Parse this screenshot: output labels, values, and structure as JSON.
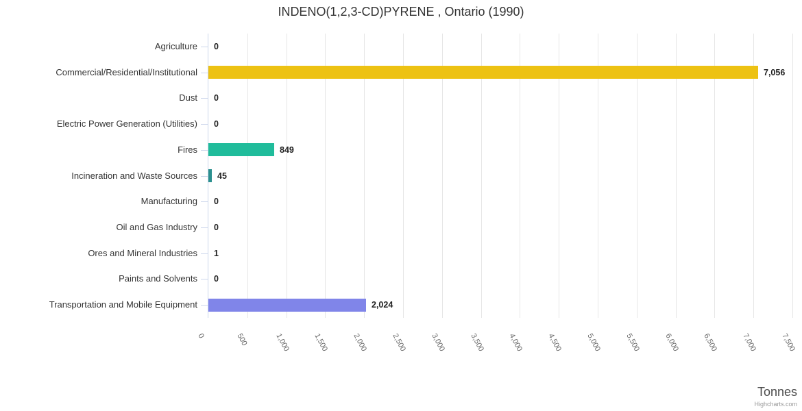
{
  "title": "INDENO(1,2,3-CD)PYRENE , Ontario (1990)",
  "credits": "Highcharts.com",
  "chart_data": {
    "type": "bar",
    "orientation": "horizontal",
    "title": "INDENO(1,2,3-CD)PYRENE , Ontario (1990)",
    "xlabel": "Tonnes",
    "categories": [
      "Agriculture",
      "Commercial/Residential/Institutional",
      "Dust",
      "Electric Power Generation (Utilities)",
      "Fires",
      "Incineration and Waste Sources",
      "Manufacturing",
      "Oil and Gas Industry",
      "Ores and Mineral Industries",
      "Paints and Solvents",
      "Transportation and Mobile Equipment"
    ],
    "values": [
      0,
      7056,
      0,
      0,
      849,
      45,
      0,
      0,
      1,
      0,
      2024
    ],
    "value_labels": [
      "0",
      "7,056",
      "0",
      "0",
      "849",
      "45",
      "0",
      "0",
      "1",
      "0",
      "2,024"
    ],
    "bar_colors": [
      null,
      "#EDC213",
      null,
      null,
      "#20BC9B",
      "#2B908F",
      null,
      null,
      null,
      null,
      "#8085E9"
    ],
    "xlim": [
      0,
      7500
    ],
    "xtick_labels": [
      "0",
      "500",
      "1,000",
      "1,500",
      "2,000",
      "2,500",
      "3,000",
      "3,500",
      "4,000",
      "4,500",
      "5,000",
      "5,500",
      "6,000",
      "6,500",
      "7,000",
      "7,500"
    ],
    "grid": true,
    "legend": false
  },
  "colors": {
    "gridline": "#e6e6e6",
    "axis_line": "#ccd6eb",
    "category_label": "#333333",
    "tick_label": "#666666",
    "title": "#333333",
    "data_label": "#222222"
  }
}
